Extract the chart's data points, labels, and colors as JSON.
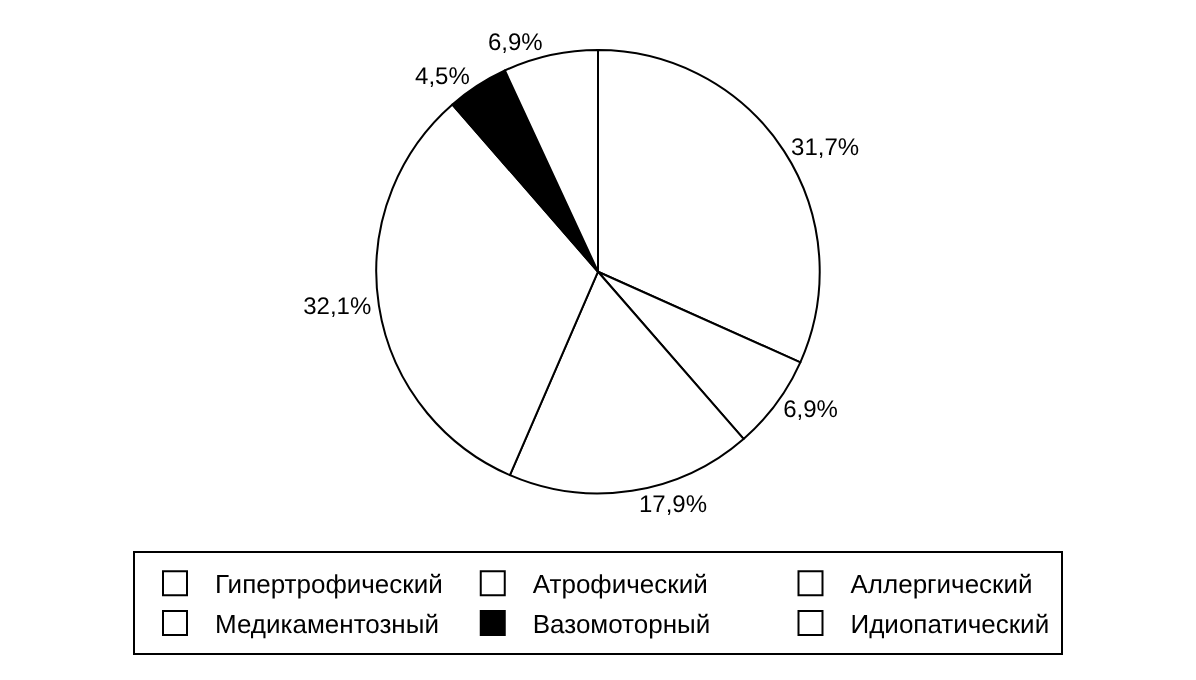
{
  "chart_data": {
    "type": "pie",
    "categories": [
      "Гипертрофический",
      "Атрофический",
      "Аллергический",
      "Медикаментозный",
      "Вазомоторный",
      "Идиопатический"
    ],
    "values": [
      31.7,
      6.9,
      17.9,
      32.1,
      4.5,
      6.9
    ],
    "value_labels": [
      "31,7%",
      "6,9%",
      "17,9%",
      "32,1%",
      "4,5%",
      "6,9%"
    ],
    "colors": [
      "#ffffff",
      "#ffffff",
      "#ffffff",
      "#ffffff",
      "#000000",
      "#ffffff"
    ],
    "legend": "bottom"
  }
}
